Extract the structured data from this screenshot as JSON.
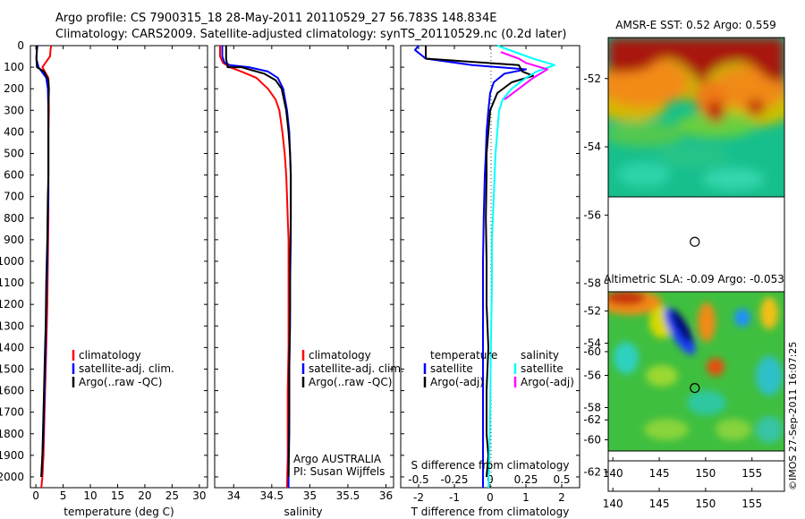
{
  "header": {
    "line1": "Argo profile: CS 7900315_18 28-May-2011 20110529_27 56.783S 148.834E",
    "line2": "Climatology: CARS2009. Satellite-adjusted climatology: synTS_20110529.nc (0.2d later)"
  },
  "colors": {
    "clim": "#ff0000",
    "sat": "#0000ff",
    "argo": "#000000",
    "sal_sat": "#00ffff",
    "sal_argo": "#ff00ff"
  },
  "depth_axis": {
    "ticks": [
      0,
      100,
      200,
      300,
      400,
      500,
      600,
      700,
      800,
      900,
      1000,
      1100,
      1200,
      1300,
      1400,
      1500,
      1600,
      1700,
      1800,
      1900,
      2000
    ],
    "ylim": [
      0,
      2050
    ],
    "inverted": true
  },
  "chart_data": [
    {
      "type": "line",
      "xlabel": "temperature (deg C)",
      "ylabel": "",
      "xlim": [
        -1,
        31.5
      ],
      "xticks": [
        0,
        5,
        10,
        15,
        20,
        25,
        30
      ],
      "legend": {
        "placement": "bottom-center",
        "entries": [
          "climatology",
          "satellite-adj. clim.",
          "Argo(..raw -QC)"
        ]
      },
      "series": [
        {
          "color": "clim",
          "x": [
            2.8,
            2.7,
            2.6,
            1.2,
            2.3,
            2.3,
            2.4,
            2.3,
            2.3,
            2.3,
            2.3,
            2.3,
            2.2,
            2.1,
            1.9,
            1.8,
            1.7,
            1.6,
            1.5,
            1.4,
            1.2,
            1.0
          ],
          "y": [
            0,
            20,
            50,
            100,
            150,
            200,
            300,
            400,
            500,
            600,
            700,
            800,
            1000,
            1200,
            1400,
            1500,
            1600,
            1700,
            1800,
            1900,
            2000,
            2050
          ]
        },
        {
          "color": "sat",
          "x": [
            0.3,
            0.2,
            0.1,
            0.5,
            1.9,
            2.2,
            2.3,
            2.3,
            2.3,
            2.3,
            2.3,
            2.2,
            2.1,
            1.9,
            1.8,
            1.7,
            1.6,
            1.5,
            1.4,
            1.2,
            1.0
          ],
          "y": [
            0,
            20,
            60,
            100,
            150,
            200,
            300,
            400,
            500,
            600,
            700,
            800,
            1000,
            1200,
            1400,
            1500,
            1600,
            1700,
            1800,
            1900,
            2000
          ]
        },
        {
          "color": "argo",
          "x": [
            0.2,
            0.1,
            0.2,
            1.5,
            2.3,
            2.4,
            2.3,
            2.3,
            2.3,
            2.3,
            2.2,
            2.1,
            1.9,
            1.8,
            1.7,
            1.6,
            1.5,
            1.4,
            1.3,
            1.2,
            1.0
          ],
          "y": [
            0,
            60,
            100,
            120,
            160,
            200,
            300,
            400,
            500,
            600,
            700,
            900,
            1100,
            1300,
            1400,
            1500,
            1600,
            1700,
            1800,
            1900,
            2000
          ]
        }
      ]
    },
    {
      "type": "line",
      "xlabel": "salinity",
      "ylabel": "",
      "xlim": [
        33.75,
        36.1
      ],
      "xticks": [
        34,
        34.5,
        35,
        35.5,
        36
      ],
      "legend": {
        "placement": "bottom-right",
        "entries": [
          "climatology",
          "satellite-adj. clim.",
          "Argo(..raw -QC)"
        ]
      },
      "annotation": [
        "Argo AUSTRALIA",
        "PI: Susan Wijffels"
      ],
      "series": [
        {
          "color": "clim",
          "x": [
            33.82,
            33.82,
            33.86,
            33.95,
            34.1,
            34.3,
            34.45,
            34.55,
            34.6,
            34.64,
            34.67,
            34.69,
            34.7,
            34.71,
            34.72,
            34.72,
            34.72,
            34.72,
            34.71,
            34.71,
            34.71,
            34.7
          ],
          "y": [
            0,
            50,
            80,
            100,
            120,
            150,
            200,
            250,
            300,
            400,
            500,
            600,
            700,
            800,
            900,
            1000,
            1200,
            1400,
            1600,
            1800,
            1900,
            2050
          ]
        },
        {
          "color": "sat",
          "x": [
            33.85,
            33.85,
            33.88,
            33.95,
            34.2,
            34.45,
            34.58,
            34.65,
            34.7,
            34.73,
            34.74,
            34.75,
            34.75,
            34.75,
            34.74,
            34.74,
            34.73,
            34.73,
            34.72,
            34.72
          ],
          "y": [
            0,
            50,
            80,
            90,
            100,
            120,
            150,
            200,
            300,
            400,
            500,
            600,
            700,
            900,
            1100,
            1300,
            1500,
            1700,
            1900,
            2050
          ]
        },
        {
          "color": "argo",
          "x": [
            33.9,
            33.9,
            33.92,
            34.1,
            34.2,
            34.4,
            34.55,
            34.63,
            34.69,
            34.72,
            34.74,
            34.75,
            34.75,
            34.74,
            34.74,
            34.73,
            34.73,
            34.72
          ],
          "y": [
            0,
            60,
            100,
            100,
            110,
            130,
            160,
            200,
            300,
            400,
            500,
            600,
            800,
            1000,
            1200,
            1500,
            1800,
            2000
          ]
        }
      ]
    },
    {
      "type": "line",
      "xlabel": "T difference from climatology",
      "xlabel_top": "S difference from climatology",
      "ylabel": "",
      "xlim": [
        -2.5,
        2.5
      ],
      "xticks": [
        -2,
        -1,
        0,
        1,
        2
      ],
      "xticks_salinity": [
        "-0.5",
        "-0.25",
        "0",
        "0.25",
        "0.5"
      ],
      "legend": {
        "placement": "bottom",
        "temperature_title": "temperature",
        "salinity_title": "salinity",
        "entries": [
          "satellite",
          "Argo(-adj)",
          "satellite",
          "Argo(-adj)"
        ]
      },
      "series": [
        {
          "color": "sat",
          "x": [
            -2.0,
            -2.1,
            -1.8,
            -0.5,
            1.0,
            0.4,
            0.1,
            0.0,
            -0.05,
            -0.1,
            -0.12,
            -0.15,
            -0.18,
            -0.2,
            -0.2,
            -0.2,
            -0.2,
            -0.2,
            -0.2,
            -0.2
          ],
          "y": [
            0,
            20,
            60,
            90,
            110,
            130,
            170,
            220,
            300,
            400,
            500,
            600,
            800,
            1000,
            1200,
            1400,
            1600,
            1800,
            2000,
            2050
          ]
        },
        {
          "color": "argo",
          "x": [
            -1.8,
            -1.8,
            0.8,
            0.9,
            1.2,
            0.6,
            0.2,
            0.0,
            -0.05,
            -0.1,
            -0.1,
            -0.12,
            -0.1,
            -0.1,
            -0.05,
            -0.1,
            -0.1,
            -0.05,
            -0.1
          ],
          "y": [
            0,
            60,
            90,
            120,
            140,
            170,
            220,
            300,
            400,
            500,
            600,
            800,
            1000,
            1200,
            1400,
            1600,
            1800,
            1900,
            2000
          ]
        },
        {
          "color": "sal_sat",
          "x": [
            0.2,
            1.2,
            1.8,
            1.3,
            1.0,
            0.6,
            0.35,
            0.25,
            0.2,
            0.15,
            0.1,
            0.05,
            0.05,
            0.02,
            0.0,
            -0.02,
            -0.05
          ],
          "y": [
            0,
            60,
            90,
            120,
            150,
            200,
            250,
            300,
            400,
            500,
            700,
            900,
            1100,
            1400,
            1700,
            1900,
            2050
          ]
        },
        {
          "color": "sal_argo",
          "x": [
            0.3,
            0.8,
            1.0,
            1.6,
            1.2,
            0.8,
            0.4
          ],
          "y": [
            30,
            60,
            80,
            110,
            150,
            200,
            250
          ]
        }
      ]
    },
    {
      "type": "heatmap",
      "title": "AMSR-E SST: 0.52 Argo: 0.559",
      "xlim": [
        139.5,
        158.5
      ],
      "ylim": [
        -63.2,
        -50.8
      ],
      "xticks": [
        140,
        145,
        150,
        155
      ],
      "yticks": [
        -52,
        -54,
        -56,
        -58,
        -60,
        -62
      ],
      "no_data_below": -60,
      "marker": {
        "lon": 148.834,
        "lat": -56.783
      }
    },
    {
      "type": "heatmap",
      "title": "Altimetric SLA: -0.09 Argo: -0.053",
      "xlim": [
        139.5,
        158.5
      ],
      "ylim": [
        -63.2,
        -50.8
      ],
      "xticks": [
        140,
        145,
        150,
        155
      ],
      "yticks": [
        -52,
        -54,
        -56,
        -58,
        -60,
        -62
      ],
      "no_data_below": -60,
      "marker": {
        "lon": 148.834,
        "lat": -56.783
      }
    }
  ],
  "footer": {
    "stamp": "©IMOS 27-Sep-2011 16:07:25"
  }
}
